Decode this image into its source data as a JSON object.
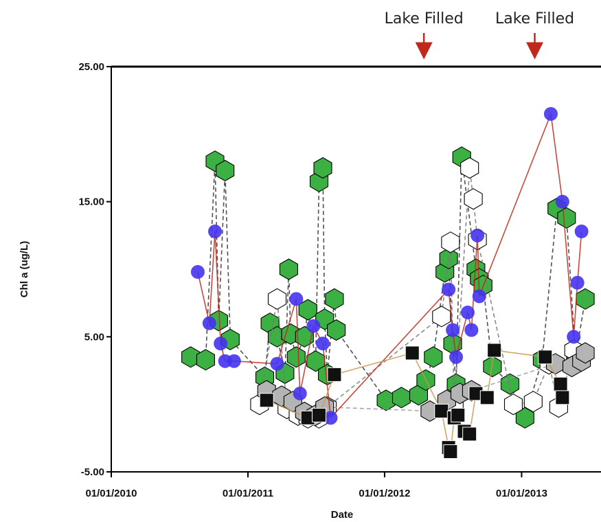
{
  "chart_data": {
    "type": "scatter",
    "title": "",
    "xlabel": "Date",
    "ylabel": "Chl a (ug/L)",
    "x_axis_type": "date",
    "xlim": [
      "2010-01-01",
      "2013-08-01"
    ],
    "ylim": [
      -5,
      25
    ],
    "x_ticks": [
      "01/01/2010",
      "01/01/2011",
      "01/01/2012",
      "01/01/2013"
    ],
    "x_tick_dates": [
      "2010-01-01",
      "2011-01-01",
      "2012-01-01",
      "2013-01-01"
    ],
    "y_ticks": [
      "25.00",
      "15.00",
      "5.00",
      "-5.00"
    ],
    "y_tick_values": [
      25,
      15,
      5,
      -5
    ],
    "grid": false,
    "legend": "none",
    "annotations": [
      {
        "text": "Lake Filled",
        "date": "2012-04-15",
        "color": "#c0281c"
      },
      {
        "text": "Lake Filled",
        "date": "2013-02-05",
        "color": "#c0281c"
      }
    ],
    "series": [
      {
        "marker": "hexagon",
        "color": "#3cb043",
        "line_style": "dashed",
        "line_color": "#333333",
        "points": [
          [
            "2010-08-01",
            3.5
          ],
          [
            "2010-09-10",
            3.3
          ],
          [
            "2010-10-05",
            18.0
          ],
          [
            "2010-10-15",
            6.2
          ],
          [
            "2010-11-01",
            17.3
          ],
          [
            "2010-11-15",
            4.8
          ],
          [
            "2011-02-15",
            2.0
          ],
          [
            "2011-03-01",
            6.0
          ],
          [
            "2011-03-20",
            5.0
          ],
          [
            "2011-04-10",
            2.3
          ],
          [
            "2011-04-20",
            10.0
          ],
          [
            "2011-04-25",
            5.2
          ],
          [
            "2011-05-10",
            3.5
          ],
          [
            "2011-06-01",
            5.0
          ],
          [
            "2011-06-10",
            7.0
          ],
          [
            "2011-07-01",
            3.2
          ],
          [
            "2011-07-10",
            16.5
          ],
          [
            "2011-07-20",
            17.5
          ],
          [
            "2011-07-25",
            6.3
          ],
          [
            "2011-08-01",
            2.2
          ],
          [
            "2011-08-20",
            7.8
          ],
          [
            "2011-08-25",
            5.5
          ],
          [
            "2012-01-05",
            0.3
          ],
          [
            "2012-02-15",
            0.5
          ],
          [
            "2012-04-01",
            0.7
          ],
          [
            "2012-04-20",
            1.8
          ],
          [
            "2012-05-10",
            3.5
          ],
          [
            "2012-06-10",
            9.8
          ],
          [
            "2012-06-20",
            10.8
          ],
          [
            "2012-07-01",
            4.5
          ],
          [
            "2012-07-10",
            1.5
          ],
          [
            "2012-07-25",
            18.3
          ],
          [
            "2012-09-01",
            10.0
          ],
          [
            "2012-09-10",
            9.3
          ],
          [
            "2012-09-20",
            8.8
          ],
          [
            "2012-10-15",
            2.8
          ],
          [
            "2012-12-01",
            1.5
          ],
          [
            "2013-01-10",
            -1.0
          ],
          [
            "2013-02-25",
            3.3
          ],
          [
            "2013-04-05",
            14.5
          ],
          [
            "2013-05-01",
            13.8
          ],
          [
            "2013-05-25",
            3.5
          ],
          [
            "2013-06-20",
            7.8
          ]
        ]
      },
      {
        "marker": "hexagon",
        "color": "#ffffff",
        "line_style": "dashed",
        "line_color": "#777777",
        "points": [
          [
            "2011-02-01",
            0.0
          ],
          [
            "2011-03-20",
            7.8
          ],
          [
            "2011-04-15",
            -0.3
          ],
          [
            "2011-05-15",
            -0.8
          ],
          [
            "2011-06-10",
            -1.0
          ],
          [
            "2011-07-10",
            -1.0
          ],
          [
            "2011-08-01",
            -0.2
          ],
          [
            "2012-06-01",
            6.5
          ],
          [
            "2012-06-25",
            12.0
          ],
          [
            "2012-07-05",
            -0.2
          ],
          [
            "2012-08-15",
            17.5
          ],
          [
            "2012-08-25",
            15.2
          ],
          [
            "2012-09-05",
            12.2
          ],
          [
            "2012-12-10",
            0.0
          ],
          [
            "2013-02-01",
            0.2
          ],
          [
            "2013-03-15",
            3.0
          ],
          [
            "2013-04-10",
            -0.2
          ],
          [
            "2013-05-20",
            4.0
          ]
        ]
      },
      {
        "marker": "hexagon",
        "color": "#b4b4b4",
        "line_style": "dashed",
        "line_color": "#999999",
        "points": [
          [
            "2011-02-20",
            1.0
          ],
          [
            "2011-04-01",
            0.6
          ],
          [
            "2011-05-01",
            0.2
          ],
          [
            "2011-06-01",
            -0.6
          ],
          [
            "2011-07-01",
            -0.8
          ],
          [
            "2011-07-25",
            -0.2
          ],
          [
            "2012-05-01",
            -0.5
          ],
          [
            "2012-06-15",
            0.3
          ],
          [
            "2012-07-20",
            0.8
          ],
          [
            "2012-08-20",
            1.0
          ],
          [
            "2013-04-01",
            3.0
          ],
          [
            "2013-05-15",
            2.8
          ],
          [
            "2013-06-10",
            3.2
          ],
          [
            "2013-06-20",
            3.8
          ]
        ]
      },
      {
        "marker": "circle",
        "color": "#4433ee",
        "line_style": "solid",
        "line_color": "#c0281c",
        "points": [
          [
            "2010-08-20",
            9.8
          ],
          [
            "2010-09-20",
            6.0
          ],
          [
            "2010-10-05",
            12.8
          ],
          [
            "2010-10-20",
            4.5
          ],
          [
            "2010-11-01",
            3.2
          ],
          [
            "2010-11-25",
            3.2
          ],
          [
            "2011-03-20",
            3.0
          ],
          [
            "2011-05-10",
            7.8
          ],
          [
            "2011-05-20",
            0.8
          ],
          [
            "2011-06-25",
            5.8
          ],
          [
            "2011-07-20",
            4.5
          ],
          [
            "2011-08-10",
            -1.0
          ],
          [
            "2012-06-20",
            8.5
          ],
          [
            "2012-07-01",
            5.5
          ],
          [
            "2012-07-10",
            3.5
          ],
          [
            "2012-08-10",
            6.8
          ],
          [
            "2012-08-20",
            5.5
          ],
          [
            "2012-09-05",
            12.5
          ],
          [
            "2012-09-10",
            8.0
          ],
          [
            "2013-03-20",
            21.5
          ],
          [
            "2013-04-20",
            15.0
          ],
          [
            "2013-05-20",
            5.0
          ],
          [
            "2013-05-30",
            9.0
          ],
          [
            "2013-06-10",
            12.8
          ]
        ]
      },
      {
        "marker": "square",
        "color": "#111111",
        "line_style": "solid",
        "line_color": "#c8964a",
        "points": [
          [
            "2011-02-20",
            0.3
          ],
          [
            "2011-06-10",
            -1.0
          ],
          [
            "2011-07-10",
            -0.8
          ],
          [
            "2011-08-20",
            2.2
          ],
          [
            "2012-03-15",
            3.8
          ],
          [
            "2012-06-01",
            -0.5
          ],
          [
            "2012-06-20",
            -3.2
          ],
          [
            "2012-06-25",
            -3.5
          ],
          [
            "2012-07-05",
            -1.0
          ],
          [
            "2012-07-15",
            -0.8
          ],
          [
            "2012-08-01",
            -2.0
          ],
          [
            "2012-08-15",
            -2.2
          ],
          [
            "2012-09-01",
            0.8
          ],
          [
            "2012-10-01",
            0.5
          ],
          [
            "2012-10-20",
            4.0
          ],
          [
            "2013-03-05",
            3.5
          ],
          [
            "2013-04-15",
            1.5
          ],
          [
            "2013-04-20",
            0.5
          ]
        ]
      }
    ]
  }
}
